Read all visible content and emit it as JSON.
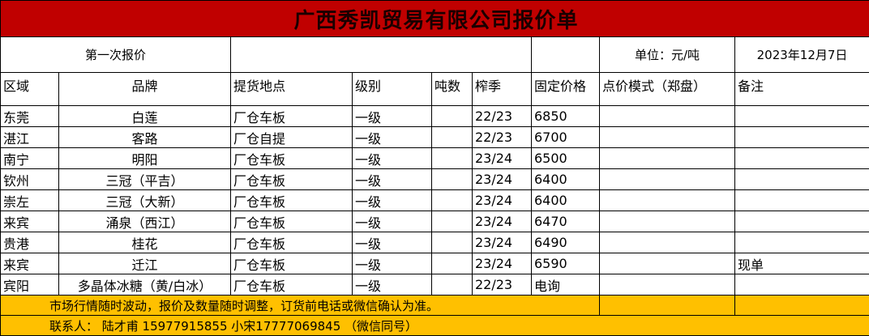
{
  "title": "广西秀凯贸易有限公司报价单",
  "info": {
    "round": "第一次报价",
    "unit": "单位：元/吨",
    "date": "2023年12月7日"
  },
  "columns": [
    "区域",
    "品牌",
    "提货地点",
    "级别",
    "吨数",
    "榨季",
    "固定价格",
    "点价模式（郑盘）",
    "备注"
  ],
  "rows": [
    [
      "东莞",
      "白莲",
      "厂仓车板",
      "一级",
      "",
      "22/23",
      "6850",
      "",
      ""
    ],
    [
      "湛江",
      "客路",
      "厂仓自提",
      "一级",
      "",
      "22/23",
      "6700",
      "",
      ""
    ],
    [
      "南宁",
      "明阳",
      "厂仓车板",
      "一级",
      "",
      "23/24",
      "6500",
      "",
      ""
    ],
    [
      "钦州",
      "三冠（平吉）",
      "厂仓车板",
      "一级",
      "",
      "23/24",
      "6400",
      "",
      ""
    ],
    [
      "崇左",
      "三冠（大新）",
      "厂仓车板",
      "一级",
      "",
      "23/24",
      "6400",
      "",
      ""
    ],
    [
      "来宾",
      "涌泉（西江）",
      "厂仓车板",
      "一级",
      "",
      "23/24",
      "6470",
      "",
      ""
    ],
    [
      "贵港",
      "桂花",
      "厂仓车板",
      "一级",
      "",
      "23/24",
      "6490",
      "",
      ""
    ],
    [
      "来宾",
      "迁江",
      "厂仓车板",
      "一级",
      "",
      "23/24",
      "6590",
      "",
      "现单"
    ],
    [
      "宾阳",
      "多晶体冰糖（黄/白冰）",
      "厂仓车板",
      "一级",
      "",
      "22/23",
      "电询",
      "",
      ""
    ]
  ],
  "footer": {
    "notice": "市场行情随时波动，报价及数量随时调整，订货前电话或微信确认为准。",
    "contact": "联系人：  陆才甫  15977915855  小宋17777069845    （微信同号）"
  },
  "colors": {
    "title_bg": "#c00000",
    "footer_bg": "#ffc000"
  }
}
